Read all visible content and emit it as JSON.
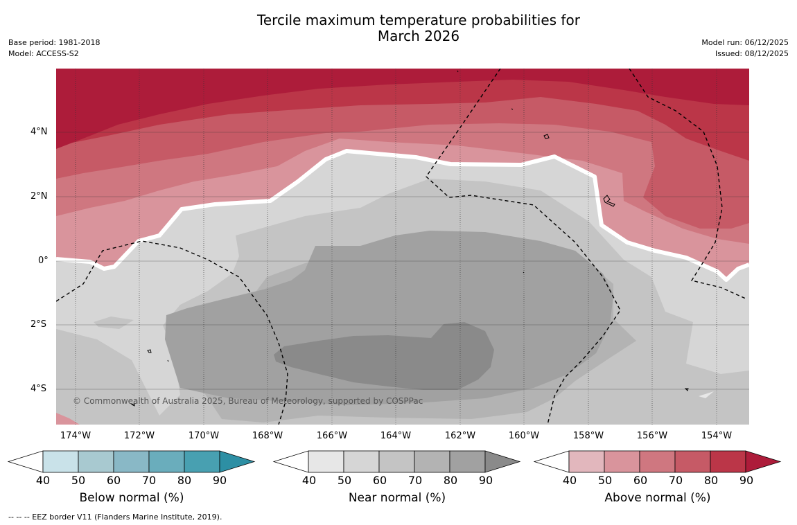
{
  "title_line1": "Tercile maximum temperature probabilities for",
  "title_line2": "March 2026",
  "meta": {
    "base_period": "Base period: 1981-2018",
    "model": "Model: ACCESS-S2",
    "model_run": "Model run: 06/12/2025",
    "issued": "Issued: 08/12/2025"
  },
  "map": {
    "lat_labels": [
      "4°N",
      "2°N",
      "0°",
      "2°S",
      "4°S"
    ],
    "lon_labels": [
      "174°W",
      "172°W",
      "170°W",
      "168°W",
      "166°W",
      "164°W",
      "162°W",
      "160°W",
      "158°W",
      "156°W",
      "154°W"
    ],
    "copyright": "© Commonwealth of Australia 2025, Bureau of Meteorology, supported by COSPPac"
  },
  "colorbars": [
    {
      "label": "Below normal (%)",
      "ticks": [
        "40",
        "50",
        "60",
        "70",
        "80",
        "90"
      ],
      "colors": [
        "#ffffff",
        "#c9e2e9",
        "#a8c9d0",
        "#89b8c6",
        "#6aadbc",
        "#48a0b1",
        "#2d8fa4"
      ]
    },
    {
      "label": "Near normal (%)",
      "ticks": [
        "40",
        "50",
        "60",
        "70",
        "80",
        "90"
      ],
      "colors": [
        "#ffffff",
        "#e7e7e7",
        "#d6d6d6",
        "#c4c4c4",
        "#b3b3b3",
        "#a1a1a1",
        "#8a8a8a"
      ]
    },
    {
      "label": "Above normal (%)",
      "ticks": [
        "40",
        "50",
        "60",
        "70",
        "80",
        "90"
      ],
      "colors": [
        "#ffffff",
        "#e2b7bd",
        "#d9949c",
        "#cf7780",
        "#c65a66",
        "#bb3648",
        "#ad1c3a"
      ]
    }
  ],
  "footnote": "--  --  -- EEZ border V11 (Flanders Marine Institute, 2019)."
}
